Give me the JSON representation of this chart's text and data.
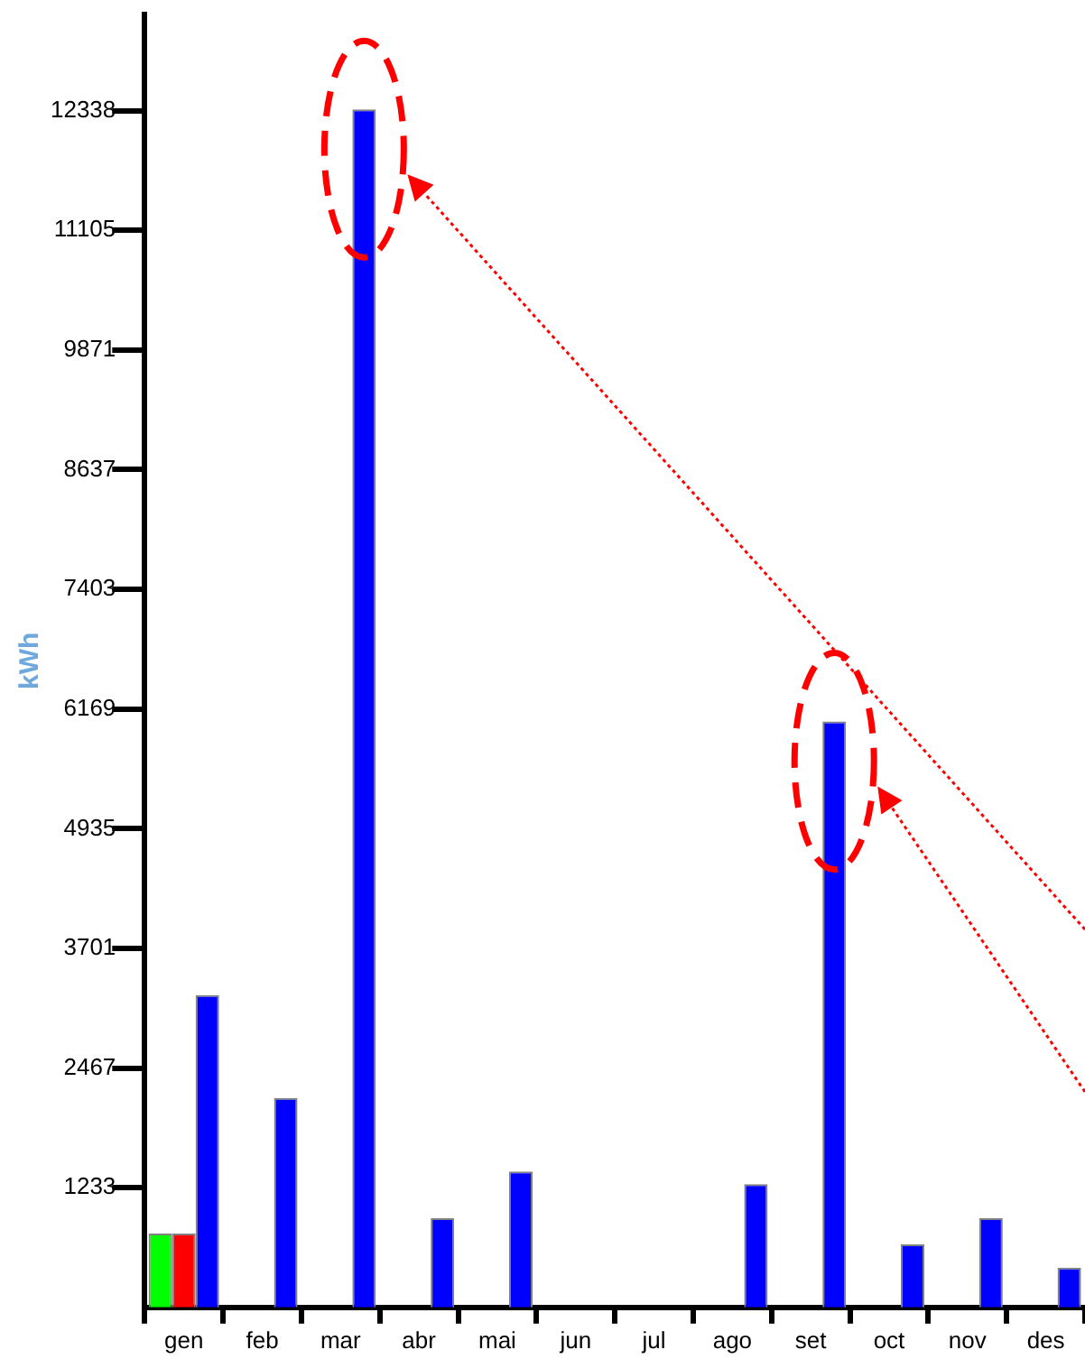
{
  "chart_data": {
    "type": "bar",
    "ylabel": "kWh",
    "categories": [
      "gen",
      "feb",
      "mar",
      "abr",
      "mai",
      "jun",
      "jul",
      "ago",
      "set",
      "oct",
      "nov",
      "des"
    ],
    "series": [
      {
        "color": "#00ff00",
        "values": [
          760,
          null,
          null,
          null,
          null,
          null,
          null,
          null,
          null,
          null,
          null,
          null
        ]
      },
      {
        "color": "#ff0000",
        "values": [
          760,
          null,
          null,
          null,
          null,
          null,
          null,
          null,
          null,
          null,
          null,
          null
        ]
      },
      {
        "color": "#0000ff",
        "values": [
          3220,
          2160,
          12350,
          920,
          1400,
          null,
          null,
          1270,
          6040,
          650,
          920,
          410
        ]
      }
    ],
    "ylim": [
      0,
      13330
    ],
    "yticks": [
      1233,
      2467,
      3701,
      4935,
      6169,
      7403,
      8637,
      9871,
      11105,
      12338
    ],
    "grid": false,
    "legend": false
  }
}
